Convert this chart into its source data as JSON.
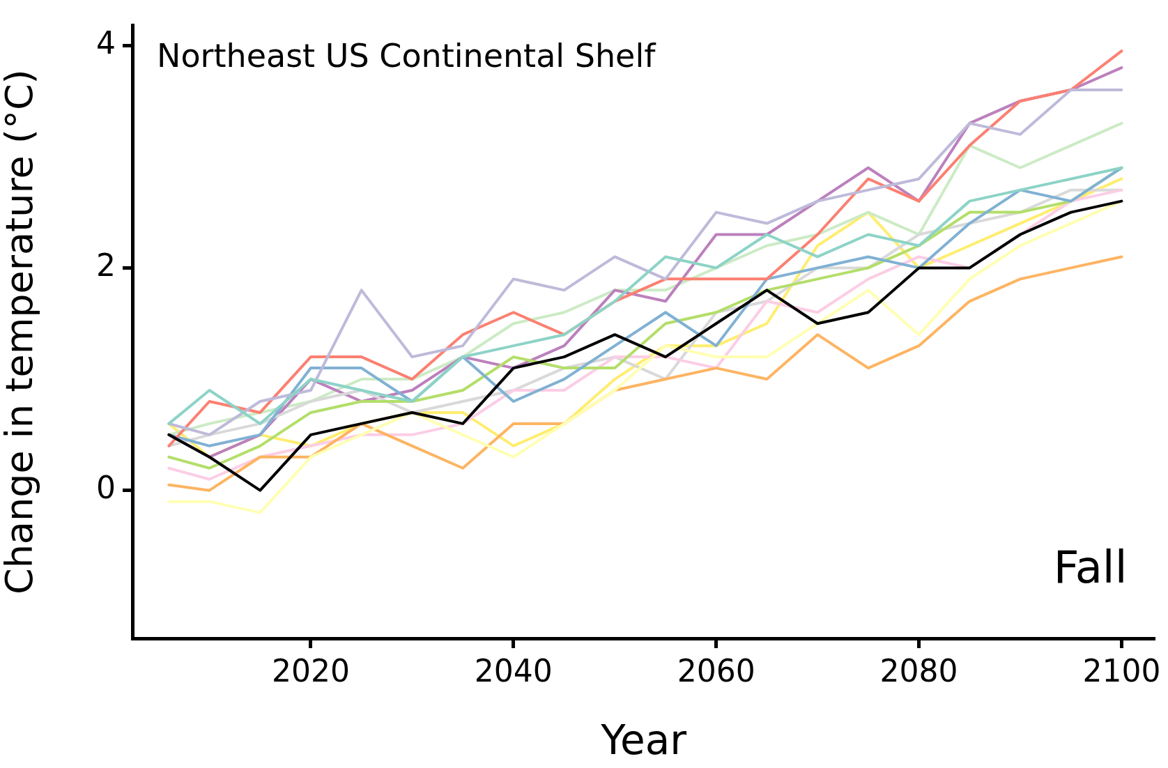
{
  "chart_data": {
    "type": "line",
    "xlabel": "Year",
    "ylabel": "Change in temperature (°C)",
    "annotations": [
      "Northeast US Continental Shelf",
      "Fall"
    ],
    "x": [
      2006,
      2010,
      2015,
      2020,
      2025,
      2030,
      2035,
      2040,
      2045,
      2050,
      2055,
      2060,
      2065,
      2070,
      2075,
      2080,
      2085,
      2090,
      2095,
      2100
    ],
    "xlim": [
      2002.4,
      2103.3
    ],
    "xticks": [
      2020,
      2040,
      2060,
      2080,
      2100
    ],
    "ylim": [
      -1.33,
      4.18
    ],
    "yticks": [
      0,
      2,
      4
    ],
    "grid": false,
    "legend": false,
    "marker": "none",
    "line_style": "solid",
    "series": [
      {
        "color": "#000000",
        "values": [
          0.5,
          0.3,
          0.0,
          0.5,
          0.6,
          0.7,
          0.6,
          1.1,
          1.2,
          1.4,
          1.2,
          1.5,
          1.8,
          1.5,
          1.6,
          2.0,
          2.0,
          2.3,
          2.5,
          2.6
        ]
      },
      {
        "color": "#8dd3c7",
        "values": [
          0.6,
          0.9,
          0.6,
          1.0,
          0.9,
          0.8,
          1.2,
          1.3,
          1.4,
          1.7,
          2.1,
          2.0,
          2.3,
          2.1,
          2.3,
          2.2,
          2.6,
          2.7,
          2.8,
          2.9
        ]
      },
      {
        "color": "#ffffb3",
        "values": [
          -0.1,
          -0.1,
          -0.2,
          0.3,
          0.5,
          0.7,
          0.5,
          0.3,
          0.6,
          0.9,
          1.3,
          1.2,
          1.2,
          1.5,
          1.8,
          1.4,
          1.9,
          2.2,
          2.4,
          2.6
        ]
      },
      {
        "color": "#bebada",
        "values": [
          0.6,
          0.5,
          0.8,
          0.9,
          1.8,
          1.2,
          1.3,
          1.9,
          1.8,
          2.1,
          1.9,
          2.5,
          2.4,
          2.6,
          2.7,
          2.8,
          3.3,
          3.2,
          3.6,
          3.6
        ]
      },
      {
        "color": "#fb8072",
        "values": [
          0.4,
          0.8,
          0.7,
          1.2,
          1.2,
          1.0,
          1.4,
          1.6,
          1.4,
          1.7,
          1.9,
          1.9,
          1.9,
          2.3,
          2.8,
          2.6,
          3.1,
          3.5,
          3.6,
          3.95
        ]
      },
      {
        "color": "#80b1d3",
        "values": [
          0.5,
          0.4,
          0.5,
          1.1,
          1.1,
          0.8,
          1.2,
          0.8,
          1.0,
          1.3,
          1.6,
          1.3,
          1.9,
          2.0,
          2.1,
          2.0,
          2.4,
          2.7,
          2.6,
          2.9
        ]
      },
      {
        "color": "#fdb462",
        "values": [
          0.05,
          0.0,
          0.3,
          0.3,
          0.6,
          0.4,
          0.2,
          0.6,
          0.6,
          0.9,
          1.0,
          1.1,
          1.0,
          1.4,
          1.1,
          1.3,
          1.7,
          1.9,
          2.0,
          2.1
        ]
      },
      {
        "color": "#b3de69",
        "values": [
          0.3,
          0.2,
          0.4,
          0.7,
          0.8,
          0.8,
          0.9,
          1.2,
          1.1,
          1.1,
          1.5,
          1.6,
          1.8,
          1.9,
          2.0,
          2.2,
          2.5,
          2.5,
          2.6,
          2.9
        ]
      },
      {
        "color": "#fccde5",
        "values": [
          0.2,
          0.1,
          0.3,
          0.4,
          0.5,
          0.5,
          0.6,
          0.9,
          0.9,
          1.2,
          1.2,
          1.1,
          1.7,
          1.6,
          1.9,
          2.1,
          2.0,
          2.3,
          2.6,
          2.7
        ]
      },
      {
        "color": "#d9d9d9",
        "values": [
          0.4,
          0.5,
          0.6,
          0.8,
          0.9,
          0.7,
          0.8,
          0.9,
          1.1,
          1.2,
          1.0,
          1.6,
          1.7,
          2.0,
          2.0,
          2.3,
          2.4,
          2.5,
          2.7,
          2.7
        ]
      },
      {
        "color": "#bc80bd",
        "values": [
          0.5,
          0.3,
          0.5,
          1.0,
          0.8,
          0.9,
          1.2,
          1.1,
          1.3,
          1.8,
          1.7,
          2.3,
          2.3,
          2.6,
          2.9,
          2.6,
          3.3,
          3.5,
          3.6,
          3.8
        ]
      },
      {
        "color": "#ccebc5",
        "values": [
          0.5,
          0.6,
          0.7,
          0.8,
          1.0,
          1.0,
          1.2,
          1.5,
          1.6,
          1.8,
          1.8,
          2.0,
          2.2,
          2.3,
          2.5,
          2.3,
          3.1,
          2.9,
          3.1,
          3.3
        ]
      },
      {
        "color": "#ffed6f",
        "values": [
          0.6,
          0.3,
          0.5,
          0.4,
          0.6,
          0.7,
          0.7,
          0.4,
          0.6,
          1.0,
          1.3,
          1.3,
          1.5,
          2.2,
          2.5,
          2.0,
          2.2,
          2.4,
          2.6,
          2.8
        ]
      }
    ]
  }
}
